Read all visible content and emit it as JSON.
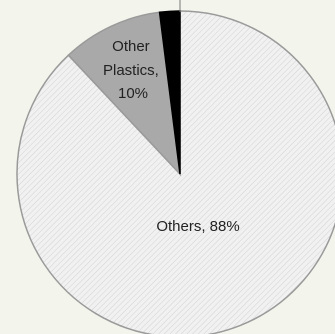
{
  "chart_data": {
    "type": "pie",
    "title": "",
    "slices": [
      {
        "label_lines": [
          "Others, 88%"
        ],
        "value": 88,
        "fill": "#ececec",
        "pattern": "hatch",
        "edge": "#9a9a9a"
      },
      {
        "label_lines": [
          "Other",
          "Plastics,",
          "10%"
        ],
        "value": 10,
        "fill": "#a9a9a9",
        "pattern": "none",
        "edge": "#9a9a9a"
      },
      {
        "label_lines": [],
        "value": 2,
        "fill": "#000000",
        "pattern": "none",
        "edge": "#000000"
      }
    ],
    "legend": "none"
  }
}
